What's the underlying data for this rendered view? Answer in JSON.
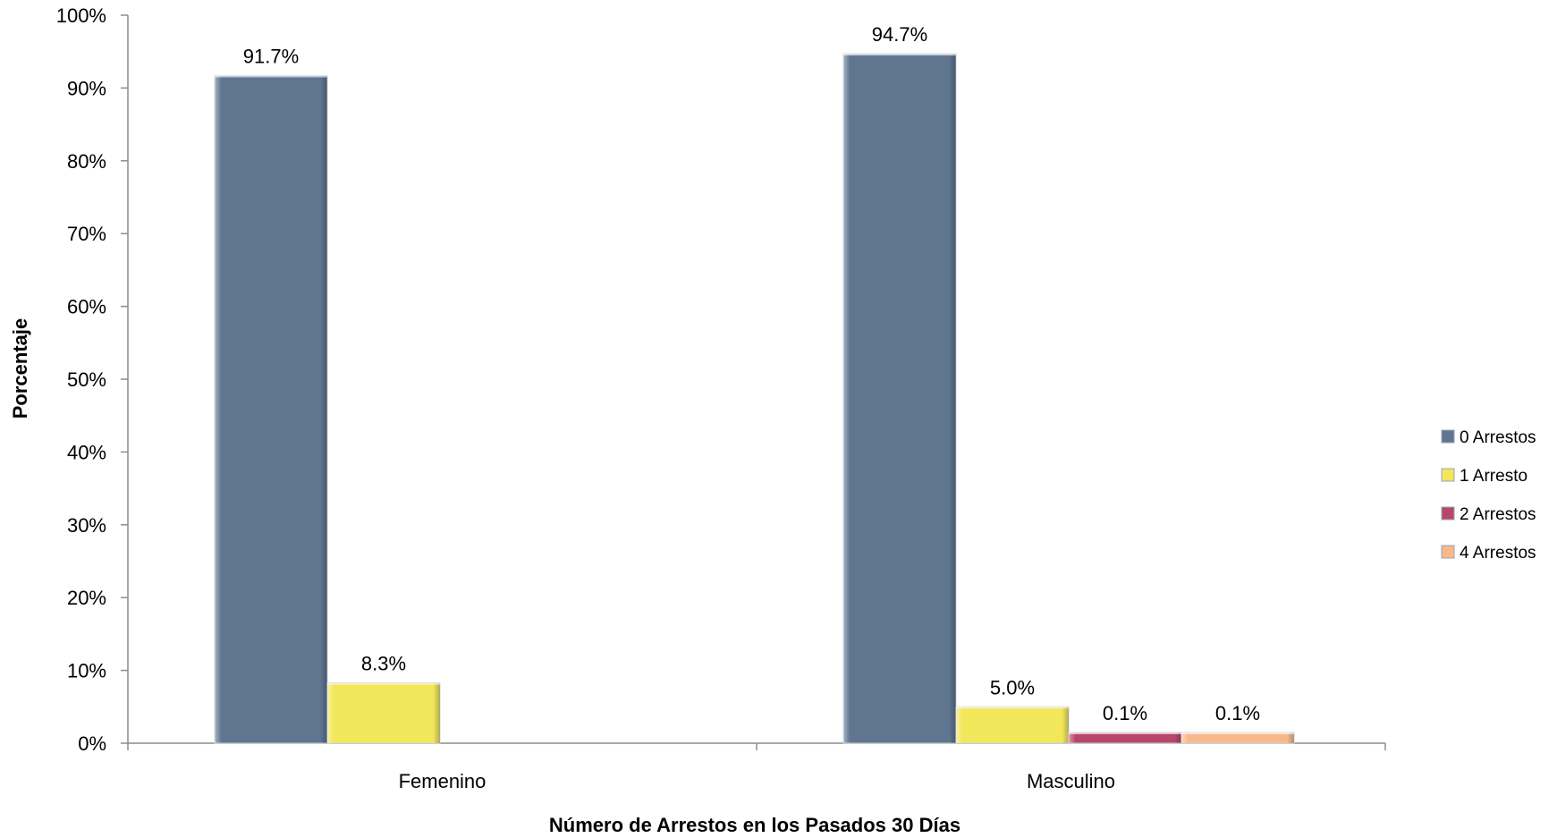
{
  "chart_data": {
    "type": "bar",
    "title": "",
    "xlabel": "Número de Arrestos en los Pasados 30 Días",
    "ylabel": "Porcentaje",
    "ylim": [
      0,
      100
    ],
    "yticks": [
      "0%",
      "10%",
      "20%",
      "30%",
      "40%",
      "50%",
      "60%",
      "70%",
      "80%",
      "90%",
      "100%"
    ],
    "categories": [
      "Femenino",
      "Masculino"
    ],
    "series": [
      {
        "name": "0 Arrestos",
        "color": "#5f7590",
        "values": [
          91.7,
          94.7
        ],
        "labels": [
          "91.7%",
          "94.7%"
        ]
      },
      {
        "name": "1 Arresto",
        "color": "#f2e65a",
        "values": [
          8.3,
          5.0
        ],
        "labels": [
          "8.3%",
          "5.0%"
        ]
      },
      {
        "name": "2 Arrestos",
        "color": "#b8466a",
        "values": [
          null,
          0.1
        ],
        "labels": [
          "",
          "0.1%"
        ]
      },
      {
        "name": "4 Arrestos",
        "color": "#f7b98a",
        "values": [
          null,
          0.1
        ],
        "labels": [
          "",
          "0.1%"
        ]
      }
    ],
    "grid": false,
    "legend_position": "right"
  }
}
